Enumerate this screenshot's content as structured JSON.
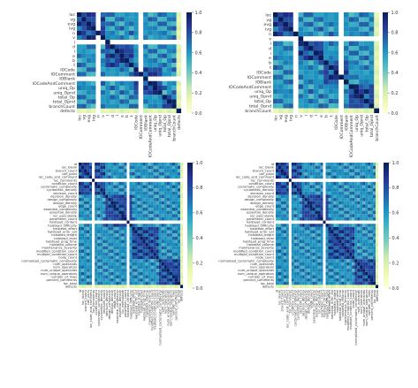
{
  "figure": {
    "panel_count": 4,
    "colormap": "YlGnBu",
    "colors": {
      "low": "#ffffd9",
      "mid": "#41b6c4",
      "high": "#081d58",
      "separator": "#ffffff"
    }
  },
  "chart_data": [
    {
      "type": "heatmap",
      "title": "",
      "xlabel": "",
      "ylabel": "",
      "y_tick_labels": [
        "loc",
        "vg",
        "evg",
        "ivg",
        "n",
        "v",
        "l",
        "d",
        "i",
        "e",
        "b",
        "t",
        "IOCode",
        "IOComment",
        "IOBlank",
        "IOCodeAndComment",
        "uniq_Op",
        "uniq_Opnd",
        "total_Op",
        "total_Opnd",
        "branchCount",
        "defects"
      ],
      "x_tick_labels": [
        "loc",
        "vg",
        "evg",
        "ivg",
        "n",
        "v",
        "l",
        "d",
        "i",
        "e",
        "b",
        "t",
        "IOCode",
        "IOComment",
        "IOBlank",
        "IOCodeAndComment",
        "uniq_Op",
        "uniq_Opnd",
        "total_Op",
        "total_Opnd",
        "branchCount",
        "defects"
      ],
      "colorbar": {
        "range": [
          0.0,
          1.0
        ],
        "ticks": [
          "1.0",
          "0.8",
          "0.6",
          "0.4",
          "0.2",
          "0.0"
        ]
      },
      "separator_row_labels": [
        "l",
        "IOBlank"
      ],
      "separator_col_labels": [
        "n",
        "IOComment"
      ]
    },
    {
      "type": "heatmap",
      "title": "",
      "xlabel": "",
      "ylabel": "",
      "y_tick_labels": [
        "loc",
        "vg",
        "evg",
        "ivg",
        "n",
        "v",
        "l",
        "d",
        "i",
        "e",
        "b",
        "t",
        "IOCode",
        "IOComment",
        "IOBlank",
        "IOCodeAndComment",
        "uniq_Op",
        "uniq_Opnd",
        "total_Op",
        "total_Opnd",
        "branchCount"
      ],
      "x_tick_labels": [
        "loc",
        "vg",
        "evg",
        "ivg",
        "n",
        "v",
        "l",
        "d",
        "i",
        "e",
        "b",
        "t",
        "IOCode",
        "IOComment",
        "IOBlank",
        "IOCodeAndComment",
        "uniq_Op",
        "uniq_Opnd",
        "total_Op",
        "total_Opnd",
        "branchCount"
      ],
      "colorbar": {
        "range": [
          0.0,
          1.0
        ],
        "ticks": [
          "1.0",
          "0.8",
          "0.6",
          "0.4",
          "0.2",
          "0.0"
        ]
      },
      "separator_row_labels": [
        "v"
      ],
      "separator_col_labels": [
        "n",
        "IOComment"
      ]
    },
    {
      "type": "heatmap",
      "title": "",
      "xlabel": "",
      "ylabel": "",
      "y_tick_labels": [
        "id",
        "loc_blank",
        "branch_count",
        "call_pairs",
        "loc_code_and_comment",
        "loc_comments",
        "condition_count",
        "cyclomatic_complexity",
        "cyclomatic_density",
        "decision_count",
        "decision_density",
        "design_complexity",
        "design_density",
        "edge_count",
        "essential_complexity",
        "essential_density",
        "loc_executable",
        "parameter_count",
        "halstead_content",
        "halstead_difficulty",
        "halstead_effort",
        "halstead_error_est",
        "halstead_length",
        "halstead_level",
        "halstead_prog_time",
        "halstead_volume",
        "maintenance_severity",
        "modified_condition_count",
        "multiple_condition_count",
        "node_count",
        "normalized_cyclomatic_complexity",
        "num_operands",
        "num_operators",
        "num_unique_operands",
        "num_unique_operators",
        "number_of_lines",
        "percent_comments",
        "loc_total",
        "defects"
      ],
      "x_tick_labels": [
        "id",
        "loc_blank",
        "branch_count",
        "call_pairs",
        "loc_code_and_comment",
        "loc_comments",
        "condition_count",
        "cyclomatic_complexity",
        "cyclomatic_density",
        "decision_count",
        "decision_density",
        "design_complexity",
        "design_density",
        "edge_count",
        "essential_complexity",
        "essential_density",
        "loc_executable",
        "parameter_count",
        "halstead_content",
        "halstead_difficulty",
        "halstead_effort",
        "halstead_error_est",
        "halstead_length",
        "halstead_level",
        "halstead_prog_time",
        "halstead_volume",
        "maintenance_severity",
        "modified_condition_count",
        "multiple_condition_count",
        "node_count",
        "normalized_cyclomatic_complexity",
        "num_operands",
        "num_operators",
        "num_unique_operands",
        "num_unique_operators",
        "number_of_lines",
        "percent_comments",
        "loc_total",
        "defects"
      ],
      "colorbar": {
        "range": [
          0.0,
          1.0
        ],
        "ticks": [
          "1.0",
          "0.8",
          "0.6",
          "0.4",
          "0.2",
          "0.0"
        ]
      },
      "separator_row_labels": [
        "loc_comments",
        "halstead_content"
      ],
      "separator_col_labels": [
        "loc_comments",
        "halstead_content"
      ]
    },
    {
      "type": "heatmap",
      "title": "",
      "xlabel": "",
      "ylabel": "",
      "y_tick_labels": [
        "id",
        "loc_blank",
        "branch_count",
        "call_pairs",
        "loc_code_and_comment",
        "loc_comments",
        "condition_count",
        "cyclomatic_complexity",
        "cyclomatic_density",
        "decision_count",
        "decision_density",
        "design_complexity",
        "design_density",
        "edge_count",
        "essential_complexity",
        "essential_density",
        "loc_executable",
        "parameter_count",
        "halstead_content",
        "halstead_difficulty",
        "halstead_effort",
        "halstead_error_est",
        "halstead_length",
        "halstead_level",
        "halstead_prog_time",
        "halstead_volume",
        "maintenance_severity",
        "modified_condition_count",
        "multiple_condition_count",
        "node_count",
        "normalized_cyclomatic_complexity",
        "num_operands",
        "num_operators",
        "num_unique_operands",
        "num_unique_operators",
        "number_of_lines",
        "percent_comments",
        "loc_total",
        "defects"
      ],
      "x_tick_labels": [
        "id",
        "loc_blank",
        "branch_count",
        "call_pairs",
        "loc_code_and_comment",
        "loc_comments",
        "condition_count",
        "cyclomatic_complexity",
        "cyclomatic_density",
        "decision_count",
        "decision_density",
        "design_complexity",
        "design_density",
        "edge_count",
        "essential_complexity",
        "essential_density",
        "loc_executable",
        "parameter_count",
        "halstead_content",
        "halstead_difficulty",
        "halstead_effort",
        "halstead_error_est",
        "halstead_length",
        "halstead_level",
        "halstead_prog_time",
        "halstead_volume",
        "maintenance_severity",
        "modified_condition_count",
        "multiple_condition_count",
        "node_count",
        "normalized_cyclomatic_complexity",
        "num_operands",
        "num_operators",
        "num_unique_operands",
        "num_unique_operators",
        "number_of_lines",
        "percent_comments",
        "loc_total",
        "defects"
      ],
      "colorbar": {
        "range": [
          0.0,
          1.0
        ],
        "ticks": [
          "1.0",
          "0.8",
          "0.6",
          "0.4",
          "0.2",
          "0.0"
        ]
      },
      "separator_row_labels": [
        "loc_comments",
        "halstead_content"
      ],
      "separator_col_labels": [
        "loc_comments",
        "halstead_content"
      ]
    }
  ]
}
